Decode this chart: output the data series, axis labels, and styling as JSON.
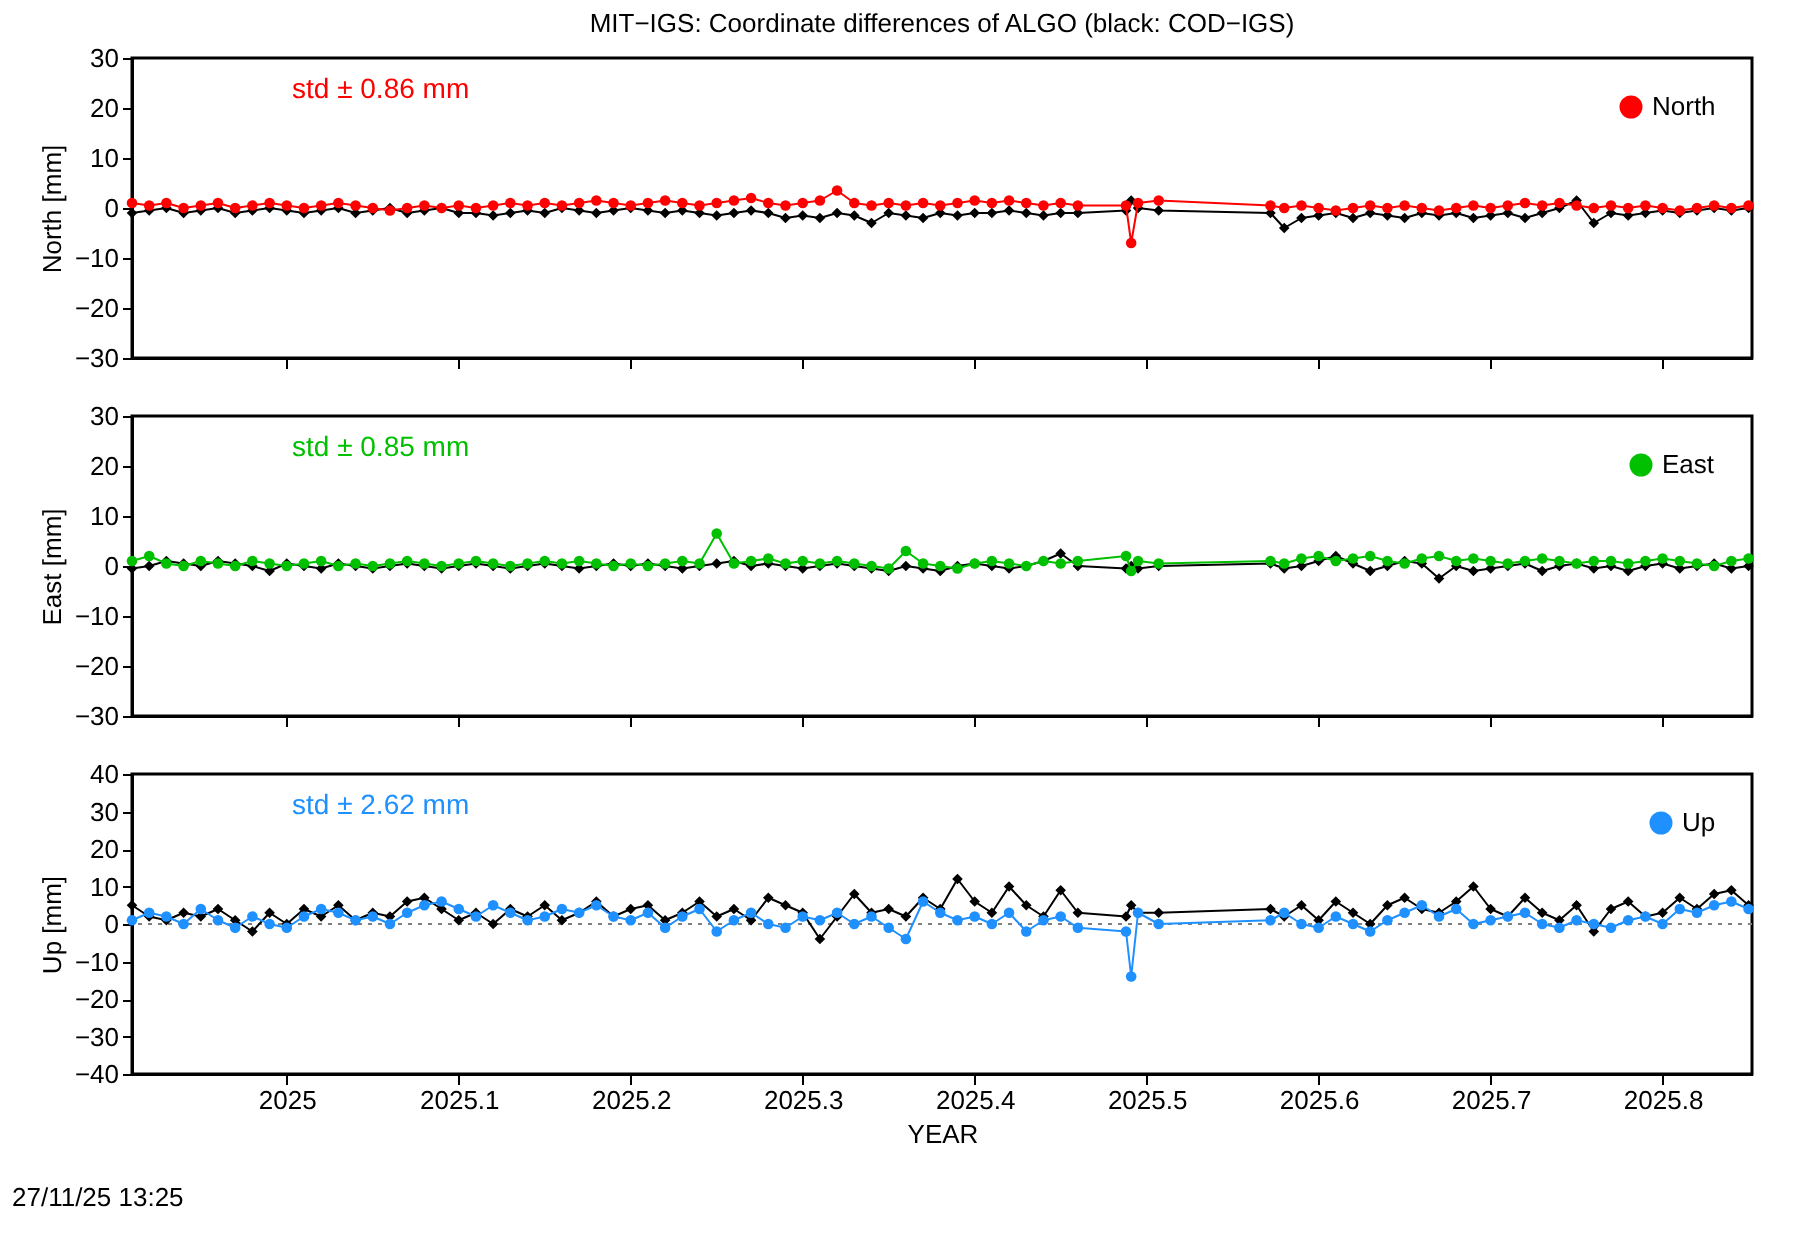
{
  "chart_data": [
    {
      "type": "line",
      "title": "MIT−IGS: Coordinate differences of ALGO (black: COD−IGS)",
      "ylabel": "North [mm]",
      "annotations": [
        "std ± 0.86 mm"
      ],
      "xlim": [
        2024.91,
        2025.852
      ],
      "xticks": [
        2025,
        2025.1,
        2025.2,
        2025.3,
        2025.4,
        2025.5,
        2025.6,
        2025.7,
        2025.8
      ],
      "ylim": [
        -30,
        30
      ],
      "yticks": [
        -30,
        -20,
        -10,
        0,
        10,
        20,
        30
      ],
      "tick_labels": "y",
      "grid": false,
      "legend": "top right",
      "marker": "circle",
      "line_style": "solid",
      "x": [
        2024.91,
        2024.92,
        2024.93,
        2024.94,
        2024.95,
        2024.96,
        2024.97,
        2024.98,
        2024.99,
        2025.0,
        2025.01,
        2025.02,
        2025.03,
        2025.04,
        2025.05,
        2025.06,
        2025.07,
        2025.08,
        2025.09,
        2025.1,
        2025.11,
        2025.12,
        2025.13,
        2025.14,
        2025.15,
        2025.16,
        2025.17,
        2025.18,
        2025.19,
        2025.2,
        2025.21,
        2025.22,
        2025.23,
        2025.24,
        2025.25,
        2025.26,
        2025.27,
        2025.28,
        2025.29,
        2025.3,
        2025.31,
        2025.32,
        2025.33,
        2025.34,
        2025.35,
        2025.36,
        2025.37,
        2025.38,
        2025.39,
        2025.4,
        2025.41,
        2025.42,
        2025.43,
        2025.44,
        2025.45,
        2025.46,
        2025.488,
        2025.491,
        2025.495,
        2025.507,
        2025.572,
        2025.58,
        2025.59,
        2025.6,
        2025.61,
        2025.62,
        2025.63,
        2025.64,
        2025.65,
        2025.66,
        2025.67,
        2025.68,
        2025.69,
        2025.7,
        2025.71,
        2025.72,
        2025.73,
        2025.74,
        2025.75,
        2025.76,
        2025.77,
        2025.78,
        2025.79,
        2025.8,
        2025.81,
        2025.82,
        2025.83,
        2025.84,
        2025.85
      ],
      "series": [
        {
          "color": "#000000",
          "marker": "diamond",
          "values": [
            -1,
            -0.5,
            0,
            -1,
            -0.5,
            0,
            -1,
            -0.5,
            0,
            -0.5,
            -1,
            -0.5,
            0,
            -1,
            -0.5,
            0,
            -1,
            -0.5,
            0,
            -1,
            -1,
            -1.5,
            -1,
            -0.5,
            -1,
            0,
            -0.5,
            -1,
            -0.5,
            0,
            -0.5,
            -1,
            -0.5,
            -1,
            -1.5,
            -1,
            -0.5,
            -1,
            -2,
            -1.5,
            -2,
            -1,
            -1.5,
            -3,
            -1,
            -1.5,
            -2,
            -1,
            -1.5,
            -1,
            -1,
            -0.5,
            -1,
            -1.5,
            -1,
            -1,
            -0.5,
            1.5,
            0,
            -0.5,
            -1,
            -4,
            -2,
            -1.5,
            -1,
            -2,
            -1,
            -1.5,
            -2,
            -1,
            -1.5,
            -1,
            -2,
            -1.5,
            -1,
            -2,
            -1,
            0,
            1.5,
            -3,
            -1,
            -1.5,
            -1,
            -0.5,
            -1,
            -0.5,
            0,
            -0.5,
            0
          ]
        },
        {
          "name": "North",
          "color": "#ff0000",
          "values": [
            1,
            0.5,
            1,
            0,
            0.5,
            1,
            0,
            0.5,
            1,
            0.5,
            0,
            0.5,
            1,
            0.5,
            0,
            -0.5,
            0,
            0.5,
            0,
            0.5,
            0,
            0.5,
            1,
            0.5,
            1,
            0.5,
            1,
            1.5,
            1,
            0.5,
            1,
            1.5,
            1,
            0.5,
            1,
            1.5,
            2,
            1,
            0.5,
            1,
            1.5,
            3.5,
            1,
            0.5,
            1,
            0.5,
            1,
            0.5,
            1,
            1.5,
            1,
            1.5,
            1,
            0.5,
            1,
            0.5,
            0.5,
            -7,
            1,
            1.5,
            0.5,
            0,
            0.5,
            0,
            -0.5,
            0,
            0.5,
            0,
            0.5,
            0,
            -0.5,
            0,
            0.5,
            0,
            0.5,
            1,
            0.5,
            1,
            0.5,
            0,
            0.5,
            0,
            0.5,
            0,
            -0.5,
            0,
            0.5,
            0,
            0.5
          ]
        }
      ]
    },
    {
      "type": "line",
      "ylabel": "East [mm]",
      "annotations": [
        "std ± 0.85 mm"
      ],
      "xlim": [
        2024.91,
        2025.852
      ],
      "xticks": [
        2025,
        2025.1,
        2025.2,
        2025.3,
        2025.4,
        2025.5,
        2025.6,
        2025.7,
        2025.8
      ],
      "ylim": [
        -30,
        30
      ],
      "yticks": [
        -30,
        -20,
        -10,
        0,
        10,
        20,
        30
      ],
      "tick_labels": "y",
      "grid": false,
      "legend": "top right",
      "marker": "circle",
      "line_style": "solid",
      "x": [
        2024.91,
        2024.92,
        2024.93,
        2024.94,
        2024.95,
        2024.96,
        2024.97,
        2024.98,
        2024.99,
        2025.0,
        2025.01,
        2025.02,
        2025.03,
        2025.04,
        2025.05,
        2025.06,
        2025.07,
        2025.08,
        2025.09,
        2025.1,
        2025.11,
        2025.12,
        2025.13,
        2025.14,
        2025.15,
        2025.16,
        2025.17,
        2025.18,
        2025.19,
        2025.2,
        2025.21,
        2025.22,
        2025.23,
        2025.24,
        2025.25,
        2025.26,
        2025.27,
        2025.28,
        2025.29,
        2025.3,
        2025.31,
        2025.32,
        2025.33,
        2025.34,
        2025.35,
        2025.36,
        2025.37,
        2025.38,
        2025.39,
        2025.4,
        2025.41,
        2025.42,
        2025.43,
        2025.44,
        2025.45,
        2025.46,
        2025.488,
        2025.491,
        2025.495,
        2025.507,
        2025.572,
        2025.58,
        2025.59,
        2025.6,
        2025.61,
        2025.62,
        2025.63,
        2025.64,
        2025.65,
        2025.66,
        2025.67,
        2025.68,
        2025.69,
        2025.7,
        2025.71,
        2025.72,
        2025.73,
        2025.74,
        2025.75,
        2025.76,
        2025.77,
        2025.78,
        2025.79,
        2025.8,
        2025.81,
        2025.82,
        2025.83,
        2025.84,
        2025.85
      ],
      "series": [
        {
          "color": "#000000",
          "marker": "diamond",
          "values": [
            -0.5,
            0,
            1,
            0.5,
            0,
            1,
            0.5,
            0,
            -1,
            0.5,
            0,
            -0.5,
            0.5,
            0,
            -0.5,
            0,
            0.5,
            0,
            -0.5,
            0,
            0.5,
            0,
            -0.5,
            0,
            0.5,
            0,
            -0.5,
            0,
            0.5,
            0,
            0.5,
            0,
            -0.5,
            0,
            0.5,
            1,
            0,
            0.5,
            0,
            -0.5,
            0,
            0.5,
            0,
            -0.5,
            -1,
            0,
            -0.5,
            -1,
            0,
            0.5,
            0,
            -0.5,
            0,
            1,
            2.5,
            0,
            -0.5,
            0,
            -0.5,
            0,
            0.5,
            -0.5,
            0,
            1,
            2,
            0.5,
            -1,
            0,
            1,
            0.5,
            -2.5,
            0,
            -1,
            -0.5,
            0,
            0.5,
            -1,
            0,
            0.5,
            -0.5,
            0,
            -1,
            0,
            0.5,
            -0.5,
            0,
            0.5,
            -0.5,
            0
          ]
        },
        {
          "name": "East",
          "color": "#00c000",
          "values": [
            1,
            2,
            0.5,
            0,
            1,
            0.5,
            0,
            1,
            0.5,
            0,
            0.5,
            1,
            0,
            0.5,
            0,
            0.5,
            1,
            0.5,
            0,
            0.5,
            1,
            0.5,
            0,
            0.5,
            1,
            0.5,
            1,
            0.5,
            0,
            0.5,
            0,
            0.5,
            1,
            0.5,
            6.5,
            0.5,
            1,
            1.5,
            0.5,
            1,
            0.5,
            1,
            0.5,
            0,
            -0.5,
            3,
            0.5,
            0,
            -0.5,
            0.5,
            1,
            0.5,
            0,
            1,
            0.5,
            1,
            2,
            -1,
            1,
            0.5,
            1,
            0.5,
            1.5,
            2,
            1,
            1.5,
            2,
            1,
            0.5,
            1.5,
            2,
            1,
            1.5,
            1,
            0.5,
            1,
            1.5,
            1,
            0.5,
            1,
            1,
            0.5,
            1,
            1.5,
            1,
            0.5,
            0,
            1,
            1.5
          ]
        }
      ]
    },
    {
      "type": "line",
      "ylabel": "Up [mm]",
      "xlabel": "YEAR",
      "annotations": [
        "std ± 2.62 mm",
        "27/11/25 13:25"
      ],
      "xlim": [
        2024.91,
        2025.852
      ],
      "xticks": [
        2025,
        2025.1,
        2025.2,
        2025.3,
        2025.4,
        2025.5,
        2025.6,
        2025.7,
        2025.8
      ],
      "ylim": [
        -40,
        40
      ],
      "yticks": [
        -40,
        -30,
        -20,
        -10,
        0,
        10,
        20,
        30,
        40
      ],
      "grid": false,
      "legend": "top right",
      "marker": "circle",
      "line_style": "solid",
      "ref_lines": [
        {
          "axis": "y",
          "value": 0,
          "color": "#808080",
          "line_style": "dotted"
        }
      ],
      "x": [
        2024.91,
        2024.92,
        2024.93,
        2024.94,
        2024.95,
        2024.96,
        2024.97,
        2024.98,
        2024.99,
        2025.0,
        2025.01,
        2025.02,
        2025.03,
        2025.04,
        2025.05,
        2025.06,
        2025.07,
        2025.08,
        2025.09,
        2025.1,
        2025.11,
        2025.12,
        2025.13,
        2025.14,
        2025.15,
        2025.16,
        2025.17,
        2025.18,
        2025.19,
        2025.2,
        2025.21,
        2025.22,
        2025.23,
        2025.24,
        2025.25,
        2025.26,
        2025.27,
        2025.28,
        2025.29,
        2025.3,
        2025.31,
        2025.32,
        2025.33,
        2025.34,
        2025.35,
        2025.36,
        2025.37,
        2025.38,
        2025.39,
        2025.4,
        2025.41,
        2025.42,
        2025.43,
        2025.44,
        2025.45,
        2025.46,
        2025.488,
        2025.491,
        2025.495,
        2025.507,
        2025.572,
        2025.58,
        2025.59,
        2025.6,
        2025.61,
        2025.62,
        2025.63,
        2025.64,
        2025.65,
        2025.66,
        2025.67,
        2025.68,
        2025.69,
        2025.7,
        2025.71,
        2025.72,
        2025.73,
        2025.74,
        2025.75,
        2025.76,
        2025.77,
        2025.78,
        2025.79,
        2025.8,
        2025.81,
        2025.82,
        2025.83,
        2025.84,
        2025.85
      ],
      "series": [
        {
          "color": "#000000",
          "marker": "diamond",
          "values": [
            5,
            2,
            1,
            3,
            2,
            4,
            1,
            -2,
            3,
            0,
            4,
            2,
            5,
            1,
            3,
            2,
            6,
            7,
            4,
            1,
            3,
            0,
            4,
            2,
            5,
            1,
            3,
            6,
            2,
            4,
            5,
            1,
            3,
            6,
            2,
            4,
            1,
            7,
            5,
            3,
            -4,
            2,
            8,
            3,
            4,
            2,
            7,
            4,
            12,
            6,
            3,
            10,
            5,
            2,
            9,
            3,
            2,
            5,
            3,
            3,
            4,
            2,
            5,
            1,
            6,
            3,
            0,
            5,
            7,
            4,
            3,
            6,
            10,
            4,
            2,
            7,
            3,
            1,
            5,
            -2,
            4,
            6,
            2,
            3,
            7,
            4,
            8,
            9,
            5
          ]
        },
        {
          "name": "Up",
          "color": "#1e90ff",
          "values": [
            1,
            3,
            2,
            0,
            4,
            1,
            -1,
            2,
            0,
            -1,
            2,
            4,
            3,
            1,
            2,
            0,
            3,
            5,
            6,
            4,
            2,
            5,
            3,
            1,
            2,
            4,
            3,
            5,
            2,
            1,
            3,
            -1,
            2,
            4,
            -2,
            1,
            3,
            0,
            -1,
            2,
            1,
            3,
            0,
            2,
            -1,
            -4,
            6,
            3,
            1,
            2,
            0,
            3,
            -2,
            1,
            2,
            -1,
            -2,
            -14,
            3,
            0,
            1,
            3,
            0,
            -1,
            2,
            0,
            -2,
            1,
            3,
            5,
            2,
            4,
            0,
            1,
            2,
            3,
            0,
            -1,
            1,
            0,
            -1,
            1,
            2,
            0,
            4,
            3,
            5,
            6,
            4
          ]
        }
      ]
    }
  ]
}
